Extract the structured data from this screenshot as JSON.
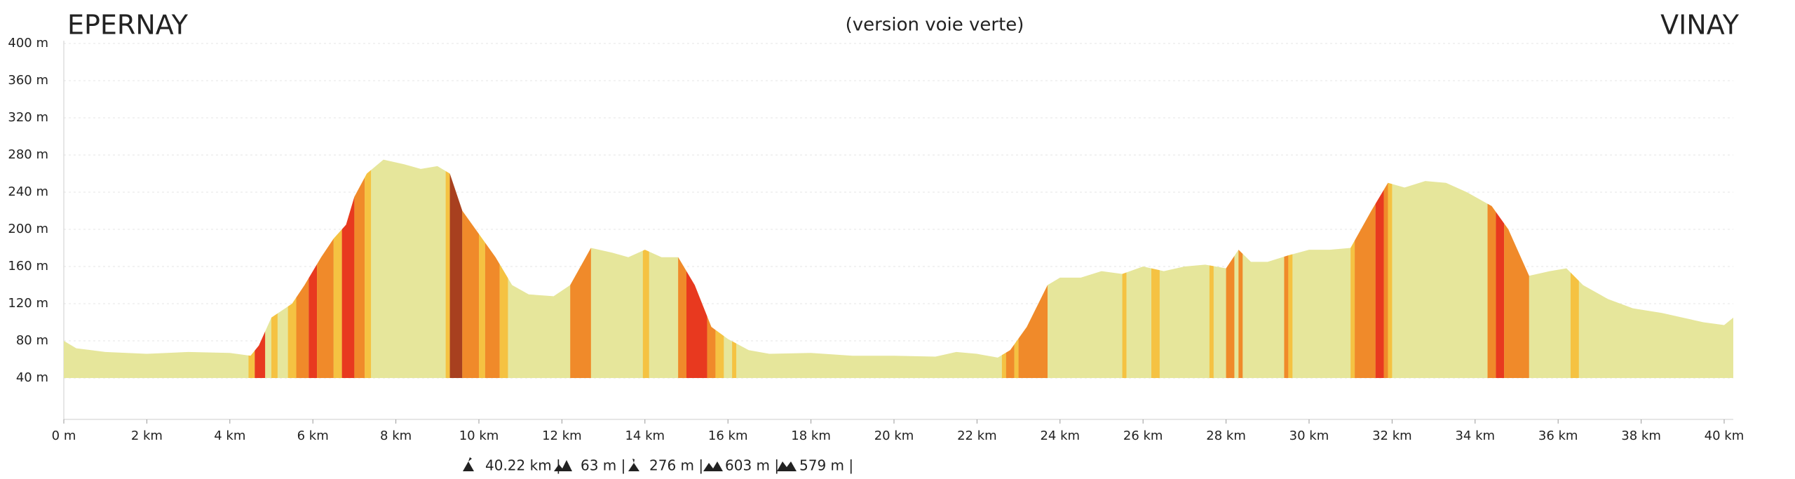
{
  "chart_data": {
    "type": "elevation-profile",
    "title_left": "EPERNAY",
    "subtitle": "(version voie verte)",
    "title_right": "VINAY",
    "color": "#e6e69b",
    "x": [
      0,
      0.3,
      1,
      2,
      3,
      4,
      4.5,
      4.7,
      5.0,
      5.5,
      5.8,
      6.2,
      6.5,
      6.8,
      7.0,
      7.3,
      7.7,
      8.2,
      8.6,
      9.0,
      9.3,
      9.6,
      10.0,
      10.4,
      10.8,
      11.2,
      11.8,
      12.2,
      12.7,
      13.2,
      13.6,
      14.0,
      14.4,
      14.8,
      15.2,
      15.6,
      16.0,
      16.5,
      17,
      18,
      19,
      20,
      21,
      21.5,
      22,
      22.5,
      22.8,
      23.2,
      23.7,
      24.0,
      24.5,
      25.0,
      25.5,
      26.0,
      26.5,
      27.0,
      27.5,
      28.0,
      28.3,
      28.6,
      29.0,
      29.5,
      30.0,
      30.5,
      31.0,
      31.5,
      31.9,
      32.3,
      32.8,
      33.3,
      33.8,
      34.4,
      34.8,
      35.3,
      35.8,
      36.2,
      36.6,
      37.2,
      37.8,
      38.5,
      39.0,
      39.5,
      40.0,
      40.22
    ],
    "values": [
      80,
      72,
      68,
      66,
      68,
      67,
      64,
      75,
      105,
      120,
      140,
      170,
      190,
      205,
      235,
      260,
      275,
      270,
      265,
      268,
      260,
      220,
      195,
      170,
      140,
      130,
      128,
      140,
      180,
      175,
      170,
      178,
      170,
      170,
      140,
      95,
      82,
      70,
      66,
      67,
      64,
      64,
      63,
      68,
      66,
      62,
      70,
      95,
      140,
      148,
      148,
      155,
      152,
      160,
      155,
      160,
      162,
      158,
      178,
      165,
      165,
      172,
      178,
      178,
      180,
      220,
      250,
      245,
      252,
      250,
      240,
      225,
      200,
      150,
      155,
      158,
      140,
      125,
      115,
      110,
      105,
      100,
      97,
      105
    ],
    "segments": [
      {
        "from": 4.45,
        "to": 4.6,
        "color": "#f5c242"
      },
      {
        "from": 4.6,
        "to": 4.85,
        "color": "#e8391f"
      },
      {
        "from": 5.0,
        "to": 5.15,
        "color": "#f5c242"
      },
      {
        "from": 5.4,
        "to": 5.6,
        "color": "#f5c242"
      },
      {
        "from": 5.6,
        "to": 5.9,
        "color": "#f08a2a"
      },
      {
        "from": 5.9,
        "to": 6.1,
        "color": "#e8391f"
      },
      {
        "from": 6.1,
        "to": 6.5,
        "color": "#f08a2a"
      },
      {
        "from": 6.5,
        "to": 6.7,
        "color": "#f5c242"
      },
      {
        "from": 6.7,
        "to": 7.0,
        "color": "#e8391f"
      },
      {
        "from": 7.0,
        "to": 7.25,
        "color": "#f08a2a"
      },
      {
        "from": 7.25,
        "to": 7.4,
        "color": "#f5c242"
      },
      {
        "from": 9.2,
        "to": 9.3,
        "color": "#f5c242"
      },
      {
        "from": 9.3,
        "to": 9.6,
        "color": "#a8401f"
      },
      {
        "from": 9.6,
        "to": 10.0,
        "color": "#f08a2a"
      },
      {
        "from": 10.0,
        "to": 10.15,
        "color": "#f5c242"
      },
      {
        "from": 10.15,
        "to": 10.5,
        "color": "#f08a2a"
      },
      {
        "from": 10.5,
        "to": 10.7,
        "color": "#f5c242"
      },
      {
        "from": 12.2,
        "to": 12.7,
        "color": "#f08a2a"
      },
      {
        "from": 13.95,
        "to": 14.1,
        "color": "#f5c242"
      },
      {
        "from": 14.8,
        "to": 15.0,
        "color": "#f08a2a"
      },
      {
        "from": 15.0,
        "to": 15.5,
        "color": "#e8391f"
      },
      {
        "from": 15.5,
        "to": 15.7,
        "color": "#f08a2a"
      },
      {
        "from": 15.7,
        "to": 15.9,
        "color": "#f5c242"
      },
      {
        "from": 16.1,
        "to": 16.2,
        "color": "#f5c242"
      },
      {
        "from": 22.6,
        "to": 22.7,
        "color": "#f5c242"
      },
      {
        "from": 22.7,
        "to": 22.9,
        "color": "#f08a2a"
      },
      {
        "from": 22.9,
        "to": 23.0,
        "color": "#f5c242"
      },
      {
        "from": 23.0,
        "to": 23.7,
        "color": "#f08a2a"
      },
      {
        "from": 25.5,
        "to": 25.6,
        "color": "#f5c242"
      },
      {
        "from": 26.2,
        "to": 26.4,
        "color": "#f5c242"
      },
      {
        "from": 27.6,
        "to": 27.7,
        "color": "#f5c242"
      },
      {
        "from": 28.0,
        "to": 28.2,
        "color": "#f08a2a"
      },
      {
        "from": 28.3,
        "to": 28.4,
        "color": "#f08a2a"
      },
      {
        "from": 29.4,
        "to": 29.5,
        "color": "#f08a2a"
      },
      {
        "from": 29.5,
        "to": 29.6,
        "color": "#f5c242"
      },
      {
        "from": 31.0,
        "to": 31.1,
        "color": "#f5c242"
      },
      {
        "from": 31.1,
        "to": 31.6,
        "color": "#f08a2a"
      },
      {
        "from": 31.6,
        "to": 31.8,
        "color": "#e8391f"
      },
      {
        "from": 31.8,
        "to": 31.9,
        "color": "#f08a2a"
      },
      {
        "from": 31.9,
        "to": 32.0,
        "color": "#f5c242"
      },
      {
        "from": 34.3,
        "to": 34.5,
        "color": "#f08a2a"
      },
      {
        "from": 34.5,
        "to": 34.7,
        "color": "#e8391f"
      },
      {
        "from": 34.7,
        "to": 35.3,
        "color": "#f08a2a"
      },
      {
        "from": 36.3,
        "to": 36.5,
        "color": "#f5c242"
      }
    ],
    "xlim": [
      0,
      40.22
    ],
    "ylim": [
      0,
      400
    ],
    "xticks": [
      {
        "value": 0,
        "label": "0 m"
      },
      {
        "value": 2,
        "label": "2 km"
      },
      {
        "value": 4,
        "label": "4 km"
      },
      {
        "value": 6,
        "label": "6 km"
      },
      {
        "value": 8,
        "label": "8 km"
      },
      {
        "value": 10,
        "label": "10 km"
      },
      {
        "value": 12,
        "label": "12 km"
      },
      {
        "value": 14,
        "label": "14 km"
      },
      {
        "value": 16,
        "label": "16 km"
      },
      {
        "value": 18,
        "label": "18 km"
      },
      {
        "value": 20,
        "label": "20 km"
      },
      {
        "value": 22,
        "label": "22 km"
      },
      {
        "value": 24,
        "label": "24 km"
      },
      {
        "value": 26,
        "label": "26 km"
      },
      {
        "value": 28,
        "label": "28 km"
      },
      {
        "value": 30,
        "label": "30 km"
      },
      {
        "value": 32,
        "label": "32 km"
      },
      {
        "value": 34,
        "label": "34 km"
      },
      {
        "value": 36,
        "label": "36 km"
      },
      {
        "value": 38,
        "label": "38 km"
      },
      {
        "value": 40,
        "label": "40 km"
      }
    ],
    "yticks": [
      {
        "value": 40,
        "label": "40 m"
      },
      {
        "value": 80,
        "label": "80 m"
      },
      {
        "value": 120,
        "label": "120 m"
      },
      {
        "value": 160,
        "label": "160 m"
      },
      {
        "value": 200,
        "label": "200 m"
      },
      {
        "value": 240,
        "label": "240 m"
      },
      {
        "value": 280,
        "label": "280 m"
      },
      {
        "value": 320,
        "label": "320 m"
      },
      {
        "value": 360,
        "label": "360 m"
      },
      {
        "value": 400,
        "label": "400 m"
      }
    ],
    "grid": true,
    "stats": [
      "40.22 km |",
      "63 m |",
      "276 m |",
      "603 m |",
      "579 m |"
    ]
  }
}
